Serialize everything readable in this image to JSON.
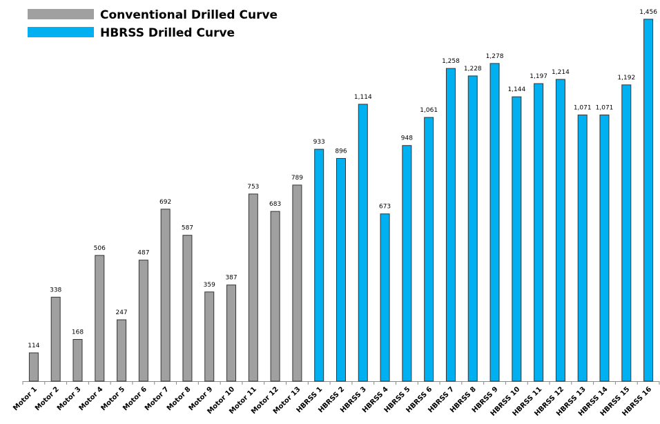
{
  "chart_data": {
    "type": "bar",
    "categories": [
      "Motor 1",
      "Motor 2",
      "Motor 3",
      "Motor 4",
      "Motor 5",
      "Motor 6",
      "Motor 7",
      "Motor 8",
      "Motor 9",
      "Motor 10",
      "Motor 11",
      "Motor 12",
      "Motor 13",
      "HBRSS 1",
      "HBRSS 2",
      "HBRSS 3",
      "HBRSS 4",
      "HBRSS 5",
      "HBRSS 6",
      "HBRSS 7",
      "HBRSS 8",
      "HBRSS 9",
      "HBRSS 10",
      "HBRSS 11",
      "HBRSS 12",
      "HBRSS 13",
      "HBRSS 14",
      "HBRSS 15",
      "HBRSS 16"
    ],
    "series": [
      {
        "name": "Conventional Drilled Curve",
        "color": "#a0a0a0",
        "values": [
          114,
          338,
          168,
          506,
          247,
          487,
          692,
          587,
          359,
          387,
          753,
          683,
          789,
          null,
          null,
          null,
          null,
          null,
          null,
          null,
          null,
          null,
          null,
          null,
          null,
          null,
          null,
          null,
          null
        ],
        "value_labels": [
          "114",
          "338",
          "168",
          "506",
          "247",
          "487",
          "692",
          "587",
          "359",
          "387",
          "753",
          "683",
          "789",
          null,
          null,
          null,
          null,
          null,
          null,
          null,
          null,
          null,
          null,
          null,
          null,
          null,
          null,
          null,
          null
        ]
      },
      {
        "name": "HBRSS Drilled Curve",
        "color": "#00b0f0",
        "values": [
          null,
          null,
          null,
          null,
          null,
          null,
          null,
          null,
          null,
          null,
          null,
          null,
          null,
          933,
          896,
          1114,
          673,
          948,
          1061,
          1258,
          1228,
          1278,
          1144,
          1197,
          1214,
          1071,
          1071,
          1192,
          1456
        ],
        "value_labels": [
          null,
          null,
          null,
          null,
          null,
          null,
          null,
          null,
          null,
          null,
          null,
          null,
          null,
          "933",
          "896",
          "1,114",
          "673",
          "948",
          "1,061",
          "1,258",
          "1,228",
          "1,278",
          "1,144",
          "1,197",
          "1,214",
          "1,071",
          "1,071",
          "1,192",
          "1,456"
        ]
      }
    ],
    "ylim": [
      0,
      1500
    ],
    "legend": "top-left"
  }
}
